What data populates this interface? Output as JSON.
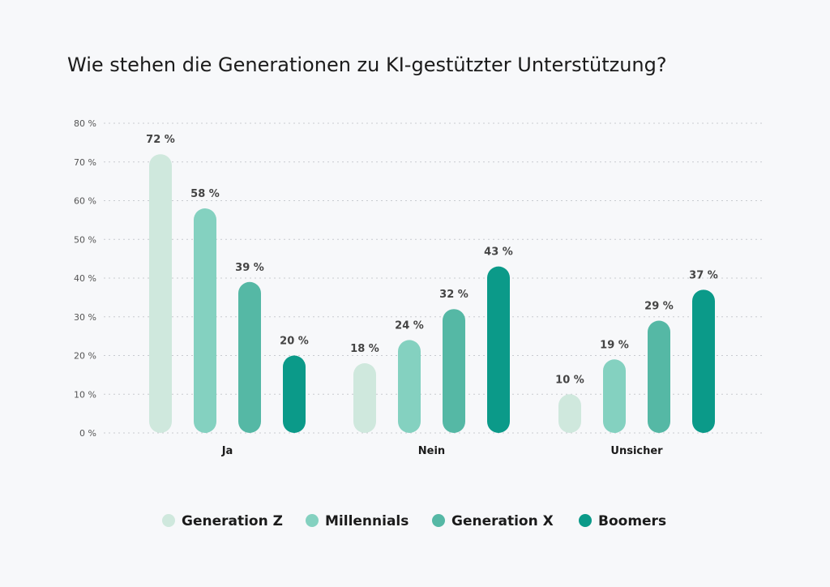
{
  "chart_data": {
    "type": "bar",
    "title": "Wie stehen die Generationen zu KI-gestützter Unterstützung?",
    "categories": [
      "Ja",
      "Nein",
      "Unsicher"
    ],
    "series": [
      {
        "name": "Generation Z",
        "color": "#cfe8dd",
        "values": [
          72,
          18,
          10
        ]
      },
      {
        "name": "Millennials",
        "color": "#84d1c0",
        "values": [
          58,
          24,
          19
        ]
      },
      {
        "name": "Generation X",
        "color": "#55b8a5",
        "values": [
          39,
          32,
          29
        ]
      },
      {
        "name": "Boomers",
        "color": "#0b9a89",
        "values": [
          20,
          43,
          37
        ]
      }
    ],
    "value_labels": [
      [
        "72 %",
        "18 %",
        "10 %"
      ],
      [
        "58 %",
        "24 %",
        "19 %"
      ],
      [
        "39 %",
        "32 %",
        "29 %"
      ],
      [
        "20 %",
        "43 %",
        "37 %"
      ]
    ],
    "yticks": [
      0,
      10,
      20,
      30,
      40,
      50,
      60,
      70,
      80
    ],
    "ytick_labels": [
      "0 %",
      "10 %",
      "20 %",
      "30 %",
      "40 %",
      "50 %",
      "60 %",
      "70 %",
      "80 %"
    ],
    "ylim": [
      0,
      80
    ],
    "grid": true,
    "legend": "bottom"
  }
}
